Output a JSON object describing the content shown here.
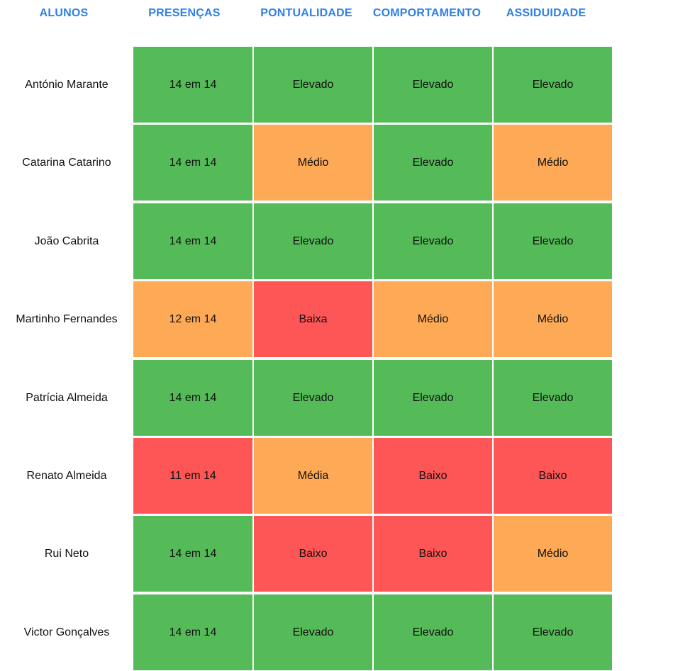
{
  "headers": {
    "students": "ALUNOS",
    "attendance": "PRESENÇAS",
    "punctuality": "PONTUALIDADE",
    "behavior": "COMPORTAMENTO",
    "assiduity": "ASSIDUIDADE"
  },
  "colors": {
    "header_text": "#2f7fe6",
    "good": "#55bb58",
    "medium": "#fea955",
    "bad": "#fe5656"
  },
  "rows": [
    {
      "name": "António Marante",
      "cells": [
        {
          "text": "14 em 14",
          "level": "green"
        },
        {
          "text": "Elevado",
          "level": "green"
        },
        {
          "text": "Elevado",
          "level": "green"
        },
        {
          "text": "Elevado",
          "level": "green"
        }
      ]
    },
    {
      "name": "Catarina Catarino",
      "cells": [
        {
          "text": "14 em 14",
          "level": "green"
        },
        {
          "text": "Médio",
          "level": "orange"
        },
        {
          "text": "Elevado",
          "level": "green"
        },
        {
          "text": "Médio",
          "level": "orange"
        }
      ]
    },
    {
      "name": "João Cabrita",
      "cells": [
        {
          "text": "14 em 14",
          "level": "green"
        },
        {
          "text": "Elevado",
          "level": "green"
        },
        {
          "text": "Elevado",
          "level": "green"
        },
        {
          "text": "Elevado",
          "level": "green"
        }
      ]
    },
    {
      "name": "Martinho Fernandes",
      "cells": [
        {
          "text": "12 em 14",
          "level": "orange"
        },
        {
          "text": "Baixa",
          "level": "red"
        },
        {
          "text": "Médio",
          "level": "orange"
        },
        {
          "text": "Médio",
          "level": "orange"
        }
      ]
    },
    {
      "name": "Patrícia Almeida",
      "cells": [
        {
          "text": "14 em 14",
          "level": "green"
        },
        {
          "text": "Elevado",
          "level": "green"
        },
        {
          "text": "Elevado",
          "level": "green"
        },
        {
          "text": "Elevado",
          "level": "green"
        }
      ]
    },
    {
      "name": "Renato Almeida",
      "cells": [
        {
          "text": "11 em 14",
          "level": "red"
        },
        {
          "text": "Média",
          "level": "orange"
        },
        {
          "text": "Baixo",
          "level": "red"
        },
        {
          "text": "Baixo",
          "level": "red"
        }
      ]
    },
    {
      "name": "Rui Neto",
      "cells": [
        {
          "text": "14 em 14",
          "level": "green"
        },
        {
          "text": "Baixo",
          "level": "red"
        },
        {
          "text": "Baixo",
          "level": "red"
        },
        {
          "text": "Médio",
          "level": "orange"
        }
      ]
    },
    {
      "name": "Victor Gonçalves",
      "cells": [
        {
          "text": "14 em 14",
          "level": "green"
        },
        {
          "text": "Elevado",
          "level": "green"
        },
        {
          "text": "Elevado",
          "level": "green"
        },
        {
          "text": "Elevado",
          "level": "green"
        }
      ]
    }
  ]
}
